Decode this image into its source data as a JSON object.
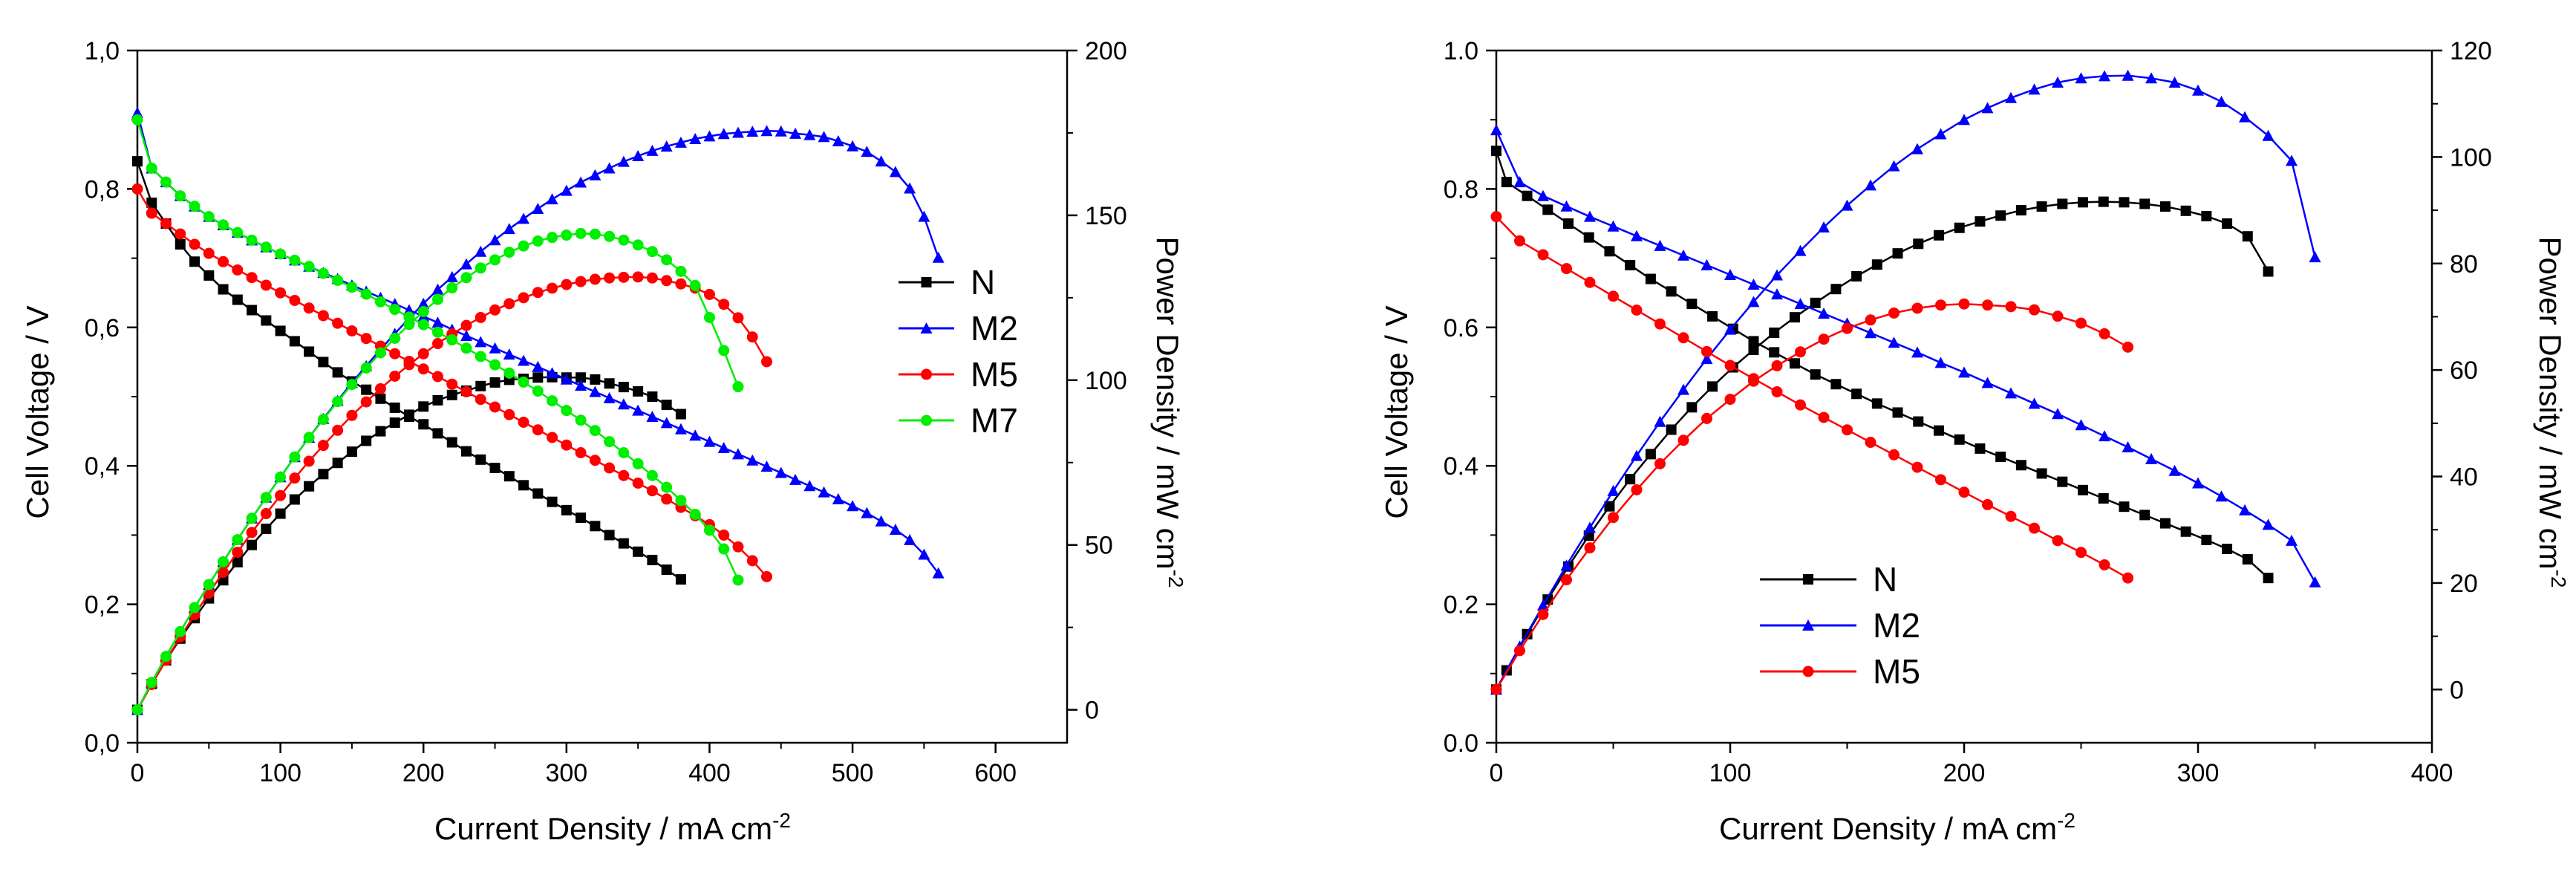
{
  "chart_data": [
    {
      "type": "line",
      "panel": "left",
      "xlabel": "Current Density / mA cm",
      "xlabel_sup": "-2",
      "ylabel": "Cell Voltage / V",
      "y2label": "Power Density / mW cm",
      "y2label_sup": "-2",
      "xlim": [
        0,
        650
      ],
      "ylim": [
        0,
        1.0
      ],
      "y2lim": [
        -10,
        200
      ],
      "xticks": [
        0,
        100,
        200,
        300,
        400,
        500,
        600
      ],
      "xtick_labels": [
        "0",
        "100",
        "200",
        "300",
        "400",
        "500",
        "600"
      ],
      "yticks": [
        0,
        0.2,
        0.4,
        0.6,
        0.8,
        1.0
      ],
      "ytick_labels": [
        "0,0",
        "0,2",
        "0,4",
        "0,6",
        "0,8",
        "1,0"
      ],
      "y2ticks": [
        0,
        50,
        100,
        150,
        200
      ],
      "y2tick_labels": [
        "0",
        "50",
        "100",
        "150",
        "200"
      ],
      "legend_position": "right-middle",
      "series": [
        {
          "name": "N",
          "color": "#000000",
          "marker": "square",
          "x": [
            0,
            10,
            20,
            30,
            40,
            50,
            60,
            70,
            80,
            90,
            100,
            110,
            120,
            130,
            140,
            150,
            160,
            170,
            180,
            190,
            200,
            210,
            220,
            230,
            240,
            250,
            260,
            270,
            280,
            290,
            300,
            310,
            320,
            330,
            340,
            350,
            360,
            370,
            380
          ],
          "voltage": [
            0.84,
            0.78,
            0.75,
            0.72,
            0.695,
            0.675,
            0.655,
            0.64,
            0.625,
            0.61,
            0.595,
            0.58,
            0.565,
            0.55,
            0.535,
            0.522,
            0.51,
            0.497,
            0.484,
            0.471,
            0.46,
            0.447,
            0.434,
            0.421,
            0.409,
            0.397,
            0.385,
            0.372,
            0.36,
            0.348,
            0.336,
            0.325,
            0.313,
            0.3,
            0.288,
            0.276,
            0.264,
            0.25,
            0.236
          ],
          "power": [
            0,
            7.8,
            15,
            21.6,
            27.8,
            33.8,
            39.3,
            44.8,
            50,
            54.9,
            59.5,
            63.8,
            67.8,
            71.5,
            74.9,
            78.3,
            81.6,
            84.5,
            87.1,
            89.5,
            92,
            93.9,
            95.5,
            96.8,
            98.2,
            99.3,
            100.1,
            100.4,
            100.8,
            100.9,
            100.8,
            100.8,
            100.2,
            99,
            97.9,
            96.6,
            95,
            92.5,
            89.7
          ]
        },
        {
          "name": "M2",
          "color": "#0000ff",
          "marker": "triangle",
          "x": [
            0,
            10,
            20,
            30,
            40,
            50,
            60,
            70,
            80,
            90,
            100,
            110,
            120,
            130,
            140,
            150,
            160,
            170,
            180,
            190,
            200,
            210,
            220,
            230,
            240,
            250,
            260,
            270,
            280,
            290,
            300,
            310,
            320,
            330,
            340,
            350,
            360,
            370,
            380,
            390,
            400,
            410,
            420,
            430,
            440,
            450,
            460,
            470,
            480,
            490,
            500,
            510,
            520,
            530,
            540,
            550,
            560
          ],
          "voltage": [
            0.91,
            0.83,
            0.81,
            0.79,
            0.775,
            0.76,
            0.748,
            0.737,
            0.726,
            0.716,
            0.706,
            0.697,
            0.688,
            0.679,
            0.67,
            0.661,
            0.652,
            0.643,
            0.634,
            0.625,
            0.616,
            0.607,
            0.597,
            0.588,
            0.579,
            0.57,
            0.561,
            0.552,
            0.543,
            0.534,
            0.525,
            0.516,
            0.507,
            0.498,
            0.489,
            0.48,
            0.471,
            0.462,
            0.453,
            0.444,
            0.435,
            0.426,
            0.417,
            0.408,
            0.399,
            0.39,
            0.38,
            0.371,
            0.362,
            0.352,
            0.342,
            0.332,
            0.32,
            0.308,
            0.293,
            0.272,
            0.245
          ],
          "power": [
            0,
            8.3,
            16.2,
            23.7,
            31,
            38,
            44.9,
            51.6,
            58.1,
            64.4,
            70.6,
            76.7,
            82.6,
            88.3,
            93.8,
            99.2,
            104.3,
            109.3,
            114.1,
            118.8,
            123.2,
            127.5,
            131.3,
            135.2,
            139,
            142.5,
            145.9,
            149,
            152,
            154.9,
            157.5,
            160,
            162.2,
            164.3,
            166.3,
            168,
            169.6,
            170.9,
            172.1,
            173.2,
            174,
            174.7,
            175.1,
            175.4,
            175.6,
            175.5,
            174.8,
            174.4,
            173.8,
            172.5,
            171,
            169.3,
            166.4,
            163.2,
            158.2,
            149.6,
            137.2
          ]
        },
        {
          "name": "M5",
          "color": "#ff0000",
          "marker": "circle",
          "x": [
            0,
            10,
            20,
            30,
            40,
            50,
            60,
            70,
            80,
            90,
            100,
            110,
            120,
            130,
            140,
            150,
            160,
            170,
            180,
            190,
            200,
            210,
            220,
            230,
            240,
            250,
            260,
            270,
            280,
            290,
            300,
            310,
            320,
            330,
            340,
            350,
            360,
            370,
            380,
            390,
            400,
            410,
            420,
            430,
            440
          ],
          "voltage": [
            0.8,
            0.765,
            0.75,
            0.735,
            0.72,
            0.707,
            0.695,
            0.683,
            0.672,
            0.661,
            0.65,
            0.639,
            0.628,
            0.617,
            0.606,
            0.595,
            0.584,
            0.573,
            0.562,
            0.551,
            0.54,
            0.529,
            0.518,
            0.507,
            0.496,
            0.485,
            0.474,
            0.463,
            0.452,
            0.441,
            0.43,
            0.419,
            0.408,
            0.397,
            0.386,
            0.375,
            0.364,
            0.352,
            0.34,
            0.328,
            0.315,
            0.3,
            0.283,
            0.263,
            0.24
          ],
          "power": [
            0,
            7.7,
            15,
            22.1,
            28.8,
            35.4,
            41.7,
            47.8,
            53.8,
            59.5,
            65,
            70.3,
            75.4,
            80.2,
            84.8,
            89.3,
            93.4,
            97.4,
            101.2,
            104.7,
            108,
            111.1,
            114,
            116.6,
            119,
            121.3,
            123.2,
            125,
            126.6,
            127.9,
            129,
            129.9,
            130.6,
            131,
            131.2,
            131.3,
            131,
            130.2,
            129.2,
            127.9,
            126,
            123,
            118.9,
            113.1,
            105.6
          ]
        },
        {
          "name": "M7",
          "color": "#00ee00",
          "marker": "circle",
          "x": [
            0,
            10,
            20,
            30,
            40,
            50,
            60,
            70,
            80,
            90,
            100,
            110,
            120,
            130,
            140,
            150,
            160,
            170,
            180,
            190,
            200,
            210,
            220,
            230,
            240,
            250,
            260,
            270,
            280,
            290,
            300,
            310,
            320,
            330,
            340,
            350,
            360,
            370,
            380,
            390,
            400,
            410,
            420
          ],
          "voltage": [
            0.9,
            0.83,
            0.81,
            0.79,
            0.775,
            0.76,
            0.748,
            0.737,
            0.726,
            0.716,
            0.706,
            0.697,
            0.688,
            0.678,
            0.668,
            0.658,
            0.648,
            0.637,
            0.626,
            0.615,
            0.604,
            0.593,
            0.582,
            0.57,
            0.558,
            0.546,
            0.534,
            0.521,
            0.508,
            0.494,
            0.48,
            0.466,
            0.451,
            0.435,
            0.419,
            0.403,
            0.386,
            0.369,
            0.35,
            0.33,
            0.307,
            0.28,
            0.235
          ],
          "power": [
            0,
            8.3,
            16.2,
            23.7,
            31,
            38,
            44.9,
            51.6,
            58.1,
            64.4,
            70.6,
            76.7,
            82.6,
            88.1,
            93.5,
            98.7,
            103.7,
            108.3,
            112.7,
            116.9,
            120.8,
            124.5,
            128,
            131.1,
            134,
            136.5,
            138.8,
            140.7,
            142.2,
            143.3,
            144,
            144.5,
            144.3,
            143.6,
            142.5,
            141,
            139,
            136.5,
            133,
            128.7,
            119,
            109,
            98
          ]
        }
      ]
    },
    {
      "type": "line",
      "panel": "right",
      "xlabel": "Current Density / mA cm",
      "xlabel_sup": "-2",
      "ylabel": "Cell Voltage / V",
      "y2label": "Power Density / mW cm",
      "y2label_sup": "-2",
      "xlim": [
        0,
        400
      ],
      "ylim": [
        0,
        1.0
      ],
      "y2lim": [
        -10,
        120
      ],
      "xticks": [
        0,
        100,
        200,
        300,
        400
      ],
      "xtick_labels": [
        "0",
        "100",
        "200",
        "300",
        "400"
      ],
      "yticks": [
        0,
        0.2,
        0.4,
        0.6,
        0.8,
        1.0
      ],
      "ytick_labels": [
        "0.0",
        "0.2",
        "0.4",
        "0.6",
        "0.8",
        "1.0"
      ],
      "y2ticks": [
        0,
        20,
        40,
        60,
        80,
        100,
        120
      ],
      "y2tick_labels": [
        "0",
        "20",
        "40",
        "60",
        "80",
        "100",
        "120"
      ],
      "legend_position": "bottom-center",
      "series": [
        {
          "name": "N",
          "color": "#000000",
          "marker": "square",
          "x": [
            0,
            4.4,
            13.2,
            22,
            30.8,
            39.6,
            48.4,
            57.2,
            66,
            74.8,
            83.6,
            92.4,
            101.2,
            110,
            118.8,
            127.6,
            136.4,
            145.2,
            154,
            162.8,
            171.6,
            180.4,
            189.2,
            198,
            206.8,
            215.6,
            224.4,
            233.2,
            242,
            250.8,
            259.6,
            268.4,
            277.2,
            286,
            294.8,
            303.6,
            312.4,
            321.2,
            330
          ],
          "voltage": [
            0.855,
            0.81,
            0.79,
            0.77,
            0.75,
            0.73,
            0.71,
            0.69,
            0.67,
            0.652,
            0.634,
            0.616,
            0.598,
            0.58,
            0.564,
            0.548,
            0.532,
            0.518,
            0.504,
            0.49,
            0.477,
            0.464,
            0.451,
            0.438,
            0.425,
            0.413,
            0.401,
            0.389,
            0.377,
            0.365,
            0.353,
            0.341,
            0.329,
            0.317,
            0.305,
            0.293,
            0.28,
            0.265,
            0.238
          ],
          "power": [
            0,
            3.6,
            10.4,
            16.9,
            23.1,
            28.9,
            34.4,
            39.5,
            44.2,
            48.8,
            53,
            56.9,
            60.5,
            63.8,
            67,
            69.9,
            72.6,
            75.2,
            77.6,
            79.8,
            81.9,
            83.7,
            85.3,
            86.7,
            87.9,
            89,
            90,
            90.7,
            91.2,
            91.5,
            91.6,
            91.5,
            91.2,
            90.7,
            89.9,
            88.9,
            87.5,
            85.1,
            78.5
          ]
        },
        {
          "name": "M2",
          "color": "#0000ff",
          "marker": "triangle",
          "x": [
            0,
            10,
            20,
            30,
            40,
            50,
            60,
            70,
            80,
            90,
            100,
            110,
            120,
            130,
            140,
            150,
            160,
            170,
            180,
            190,
            200,
            210,
            220,
            230,
            240,
            250,
            260,
            270,
            280,
            290,
            300,
            310,
            320,
            330,
            340,
            350
          ],
          "voltage": [
            0.885,
            0.81,
            0.79,
            0.775,
            0.76,
            0.746,
            0.732,
            0.718,
            0.704,
            0.69,
            0.676,
            0.662,
            0.648,
            0.634,
            0.62,
            0.606,
            0.592,
            0.578,
            0.564,
            0.549,
            0.535,
            0.52,
            0.505,
            0.49,
            0.475,
            0.459,
            0.443,
            0.427,
            0.41,
            0.393,
            0.375,
            0.356,
            0.336,
            0.315,
            0.292,
            0.232
          ],
          "power": [
            0,
            8.1,
            15.8,
            23.3,
            30.4,
            37.3,
            43.9,
            50.3,
            56.3,
            62.1,
            67.6,
            72.8,
            77.8,
            82.4,
            86.8,
            90.9,
            94.7,
            98.3,
            101.5,
            104.3,
            107,
            109.2,
            111.1,
            112.7,
            114,
            114.8,
            115.2,
            115.3,
            114.8,
            114,
            112.5,
            110.4,
            107.5,
            104,
            99.3,
            81.2
          ]
        },
        {
          "name": "M5",
          "color": "#ff0000",
          "marker": "circle",
          "x": [
            0,
            10,
            20,
            30,
            40,
            50,
            60,
            70,
            80,
            90,
            100,
            110,
            120,
            130,
            140,
            150,
            160,
            170,
            180,
            190,
            200,
            210,
            220,
            230,
            240,
            250,
            260,
            270
          ],
          "voltage": [
            0.76,
            0.725,
            0.705,
            0.685,
            0.665,
            0.645,
            0.625,
            0.605,
            0.585,
            0.565,
            0.545,
            0.526,
            0.507,
            0.488,
            0.47,
            0.452,
            0.434,
            0.416,
            0.398,
            0.38,
            0.362,
            0.344,
            0.327,
            0.31,
            0.292,
            0.275,
            0.257,
            0.238
          ],
          "power": [
            0,
            7.3,
            14.1,
            20.6,
            26.6,
            32.3,
            37.5,
            42.4,
            46.8,
            50.9,
            54.5,
            57.9,
            60.8,
            63.4,
            65.8,
            67.8,
            69.4,
            70.7,
            71.6,
            72.2,
            72.4,
            72.2,
            71.9,
            71.3,
            70.1,
            68.8,
            66.8,
            64.3
          ]
        }
      ]
    }
  ]
}
